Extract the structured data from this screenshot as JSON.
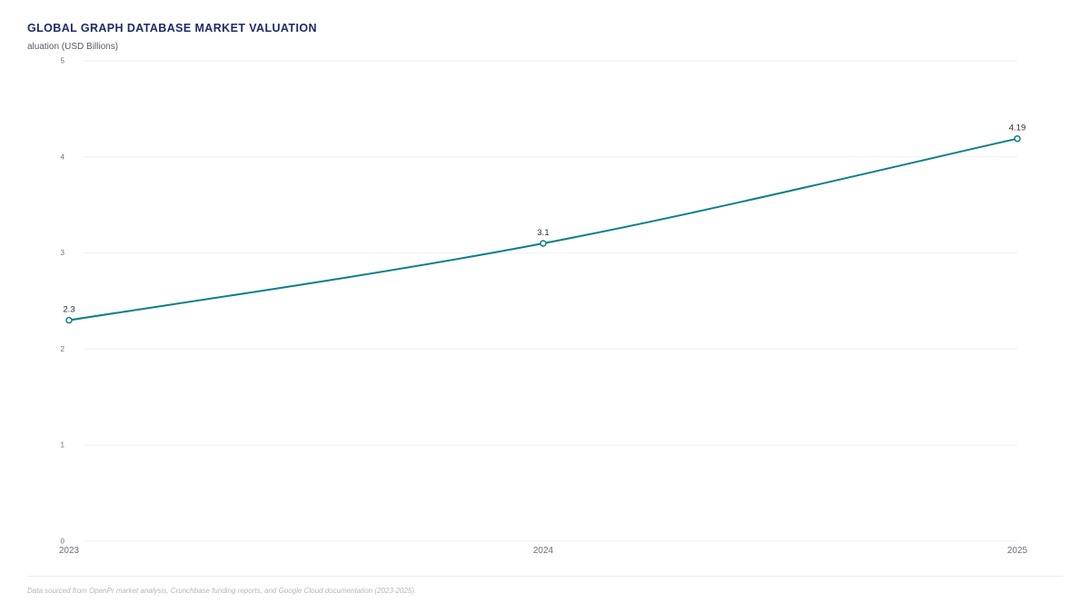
{
  "page": {
    "title": "GLOBAL GRAPH DATABASE MARKET VALUATION",
    "source_note": "Data sourced from OpenPr market analysis, Crunchbase funding reports, and Google Cloud documentation (2023-2025)."
  },
  "colors": {
    "line": "#0f7f86",
    "title": "#1f2a6b",
    "grid": "#eef0f3",
    "axis_text": "#6b7079"
  },
  "chart_data": {
    "type": "line",
    "title": "GLOBAL GRAPH DATABASE MARKET VALUATION",
    "ylabel": "aluation (USD Billions)",
    "xlabel": "",
    "categories": [
      "2023",
      "2024",
      "2025"
    ],
    "series": [
      {
        "values": [
          2.3,
          3.1,
          4.19
        ]
      }
    ],
    "data_labels": [
      "2.3",
      "3.1",
      "4.19"
    ],
    "ylim": [
      0,
      5
    ],
    "yticks": [
      0,
      1,
      2,
      3,
      4,
      5
    ],
    "grid": true,
    "smooth": true,
    "markers": "hollow-circle"
  }
}
